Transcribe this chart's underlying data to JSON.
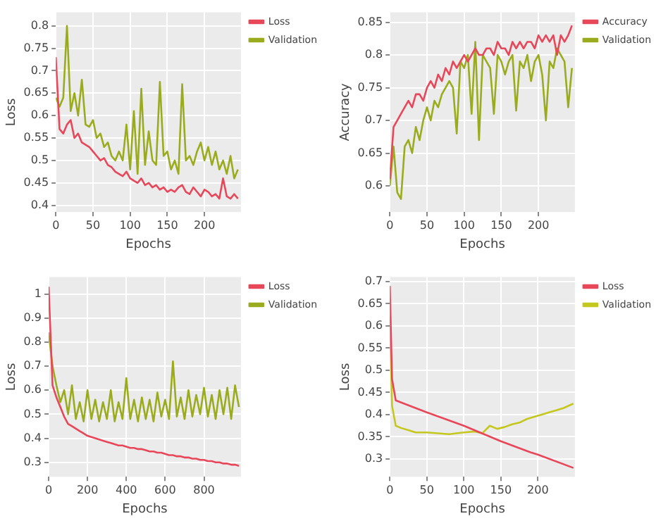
{
  "chart_data": [
    {
      "type": "line",
      "xlabel": "Epochs",
      "ylabel": "Loss",
      "xlim": [
        0,
        249
      ],
      "xticks": [
        0,
        50,
        100,
        150,
        200
      ],
      "ylim": [
        0.385,
        0.83
      ],
      "yticks": [
        0.4,
        0.45,
        0.5,
        0.55,
        0.6,
        0.65,
        0.7,
        0.75,
        0.8
      ],
      "grid": true,
      "legend": "top right",
      "marker": "none",
      "line_style": "solid",
      "x": [
        0,
        5,
        10,
        15,
        20,
        25,
        30,
        35,
        40,
        45,
        50,
        55,
        60,
        65,
        70,
        75,
        80,
        85,
        90,
        95,
        100,
        105,
        110,
        115,
        120,
        125,
        130,
        135,
        140,
        145,
        150,
        155,
        160,
        165,
        170,
        175,
        180,
        185,
        190,
        195,
        200,
        205,
        210,
        215,
        220,
        225,
        230,
        235,
        240,
        245
      ],
      "series": [
        {
          "name": "Loss",
          "color": "#e8475a",
          "values": [
            0.73,
            0.57,
            0.56,
            0.58,
            0.59,
            0.55,
            0.56,
            0.54,
            0.535,
            0.53,
            0.52,
            0.51,
            0.5,
            0.505,
            0.49,
            0.485,
            0.475,
            0.47,
            0.465,
            0.475,
            0.46,
            0.455,
            0.45,
            0.46,
            0.445,
            0.45,
            0.44,
            0.445,
            0.435,
            0.44,
            0.43,
            0.435,
            0.43,
            0.44,
            0.445,
            0.43,
            0.425,
            0.44,
            0.43,
            0.42,
            0.435,
            0.43,
            0.42,
            0.425,
            0.415,
            0.46,
            0.42,
            0.415,
            0.425,
            0.415
          ]
        },
        {
          "name": "Validation",
          "color": "#9aac1e",
          "values": [
            0.64,
            0.62,
            0.64,
            0.8,
            0.61,
            0.65,
            0.6,
            0.68,
            0.58,
            0.575,
            0.59,
            0.55,
            0.56,
            0.53,
            0.54,
            0.51,
            0.5,
            0.52,
            0.5,
            0.58,
            0.48,
            0.61,
            0.47,
            0.66,
            0.49,
            0.565,
            0.5,
            0.49,
            0.675,
            0.51,
            0.52,
            0.48,
            0.5,
            0.47,
            0.67,
            0.5,
            0.51,
            0.49,
            0.52,
            0.54,
            0.5,
            0.53,
            0.49,
            0.52,
            0.48,
            0.5,
            0.47,
            0.51,
            0.46,
            0.48
          ]
        }
      ]
    },
    {
      "type": "line",
      "xlabel": "Epochs",
      "ylabel": "Accuracy",
      "xlim": [
        0,
        249
      ],
      "xticks": [
        0,
        50,
        100,
        150,
        200
      ],
      "ylim": [
        0.56,
        0.865
      ],
      "yticks": [
        0.6,
        0.65,
        0.7,
        0.75,
        0.8,
        0.85
      ],
      "grid": true,
      "legend": "top right",
      "marker": "none",
      "line_style": "solid",
      "x": [
        0,
        5,
        10,
        15,
        20,
        25,
        30,
        35,
        40,
        45,
        50,
        55,
        60,
        65,
        70,
        75,
        80,
        85,
        90,
        95,
        100,
        105,
        110,
        115,
        120,
        125,
        130,
        135,
        140,
        145,
        150,
        155,
        160,
        165,
        170,
        175,
        180,
        185,
        190,
        195,
        200,
        205,
        210,
        215,
        220,
        225,
        230,
        235,
        240,
        245
      ],
      "series": [
        {
          "name": "Accuracy",
          "color": "#e8475a",
          "values": [
            0.61,
            0.69,
            0.7,
            0.71,
            0.72,
            0.73,
            0.72,
            0.74,
            0.74,
            0.73,
            0.75,
            0.76,
            0.75,
            0.77,
            0.76,
            0.78,
            0.77,
            0.79,
            0.78,
            0.79,
            0.8,
            0.79,
            0.8,
            0.81,
            0.8,
            0.8,
            0.81,
            0.81,
            0.8,
            0.82,
            0.81,
            0.81,
            0.8,
            0.82,
            0.81,
            0.82,
            0.81,
            0.82,
            0.82,
            0.81,
            0.83,
            0.82,
            0.83,
            0.82,
            0.83,
            0.8,
            0.83,
            0.82,
            0.83,
            0.845
          ]
        },
        {
          "name": "Validation",
          "color": "#9aac1e",
          "values": [
            0.6,
            0.66,
            0.59,
            0.58,
            0.66,
            0.67,
            0.65,
            0.69,
            0.67,
            0.7,
            0.72,
            0.7,
            0.73,
            0.72,
            0.74,
            0.75,
            0.76,
            0.75,
            0.68,
            0.79,
            0.78,
            0.8,
            0.71,
            0.82,
            0.67,
            0.8,
            0.79,
            0.78,
            0.71,
            0.8,
            0.79,
            0.77,
            0.79,
            0.8,
            0.715,
            0.79,
            0.78,
            0.8,
            0.76,
            0.79,
            0.8,
            0.77,
            0.7,
            0.79,
            0.78,
            0.81,
            0.8,
            0.79,
            0.72,
            0.78
          ]
        }
      ]
    },
    {
      "type": "line",
      "xlabel": "Epochs",
      "ylabel": "Loss",
      "xlim": [
        0,
        990
      ],
      "xticks": [
        0,
        200,
        400,
        600,
        800
      ],
      "ylim": [
        0.24,
        1.07
      ],
      "yticks": [
        0.3,
        0.4,
        0.5,
        0.6,
        0.7,
        0.8,
        0.9,
        1
      ],
      "grid": true,
      "legend": "top right",
      "marker": "none",
      "line_style": "solid",
      "x": [
        0,
        20,
        40,
        60,
        80,
        100,
        120,
        140,
        160,
        180,
        200,
        220,
        240,
        260,
        280,
        300,
        320,
        340,
        360,
        380,
        400,
        420,
        440,
        460,
        480,
        500,
        520,
        540,
        560,
        580,
        600,
        620,
        640,
        660,
        680,
        700,
        720,
        740,
        760,
        780,
        800,
        820,
        840,
        860,
        880,
        900,
        920,
        940,
        960,
        980
      ],
      "series": [
        {
          "name": "Loss",
          "color": "#e8475a",
          "values": [
            1.03,
            0.62,
            0.57,
            0.53,
            0.49,
            0.46,
            0.45,
            0.44,
            0.43,
            0.42,
            0.41,
            0.405,
            0.4,
            0.395,
            0.39,
            0.385,
            0.38,
            0.375,
            0.37,
            0.37,
            0.365,
            0.36,
            0.36,
            0.355,
            0.355,
            0.35,
            0.345,
            0.345,
            0.34,
            0.34,
            0.335,
            0.33,
            0.33,
            0.325,
            0.325,
            0.32,
            0.32,
            0.315,
            0.315,
            0.31,
            0.31,
            0.305,
            0.305,
            0.3,
            0.3,
            0.295,
            0.295,
            0.29,
            0.29,
            0.285
          ]
        },
        {
          "name": "Validation",
          "color": "#9aac1e",
          "values": [
            0.84,
            0.7,
            0.62,
            0.55,
            0.6,
            0.5,
            0.62,
            0.48,
            0.55,
            0.47,
            0.6,
            0.48,
            0.56,
            0.47,
            0.55,
            0.48,
            0.6,
            0.47,
            0.55,
            0.48,
            0.65,
            0.48,
            0.56,
            0.47,
            0.57,
            0.48,
            0.56,
            0.47,
            0.59,
            0.49,
            0.56,
            0.48,
            0.72,
            0.49,
            0.57,
            0.48,
            0.6,
            0.49,
            0.58,
            0.5,
            0.61,
            0.49,
            0.58,
            0.48,
            0.6,
            0.5,
            0.61,
            0.48,
            0.62,
            0.53
          ]
        }
      ]
    },
    {
      "type": "line",
      "xlabel": "Epochs",
      "ylabel": "Loss",
      "xlim": [
        0,
        250
      ],
      "xticks": [
        0,
        50,
        100,
        150,
        200
      ],
      "ylim": [
        0.26,
        0.71
      ],
      "yticks": [
        0.3,
        0.35,
        0.4,
        0.45,
        0.5,
        0.55,
        0.6,
        0.65,
        0.7
      ],
      "grid": true,
      "legend": "top right",
      "marker": "none",
      "line_style": "solid",
      "series": [
        {
          "name": "Loss",
          "color": "#e8475a",
          "x": [
            0,
            3,
            8,
            50,
            100,
            150,
            190,
            200,
            248
          ],
          "values": [
            0.69,
            0.48,
            0.432,
            0.405,
            0.375,
            0.34,
            0.315,
            0.31,
            0.28
          ]
        },
        {
          "name": "Validation",
          "color": "#c4c81e",
          "x": [
            0,
            3,
            8,
            15,
            25,
            35,
            50,
            65,
            80,
            100,
            115,
            125,
            135,
            145,
            155,
            165,
            175,
            185,
            195,
            205,
            215,
            225,
            235,
            248
          ],
          "values": [
            0.62,
            0.42,
            0.375,
            0.37,
            0.365,
            0.36,
            0.36,
            0.358,
            0.356,
            0.36,
            0.362,
            0.358,
            0.375,
            0.368,
            0.372,
            0.378,
            0.382,
            0.39,
            0.395,
            0.4,
            0.405,
            0.41,
            0.415,
            0.425
          ]
        }
      ]
    }
  ]
}
